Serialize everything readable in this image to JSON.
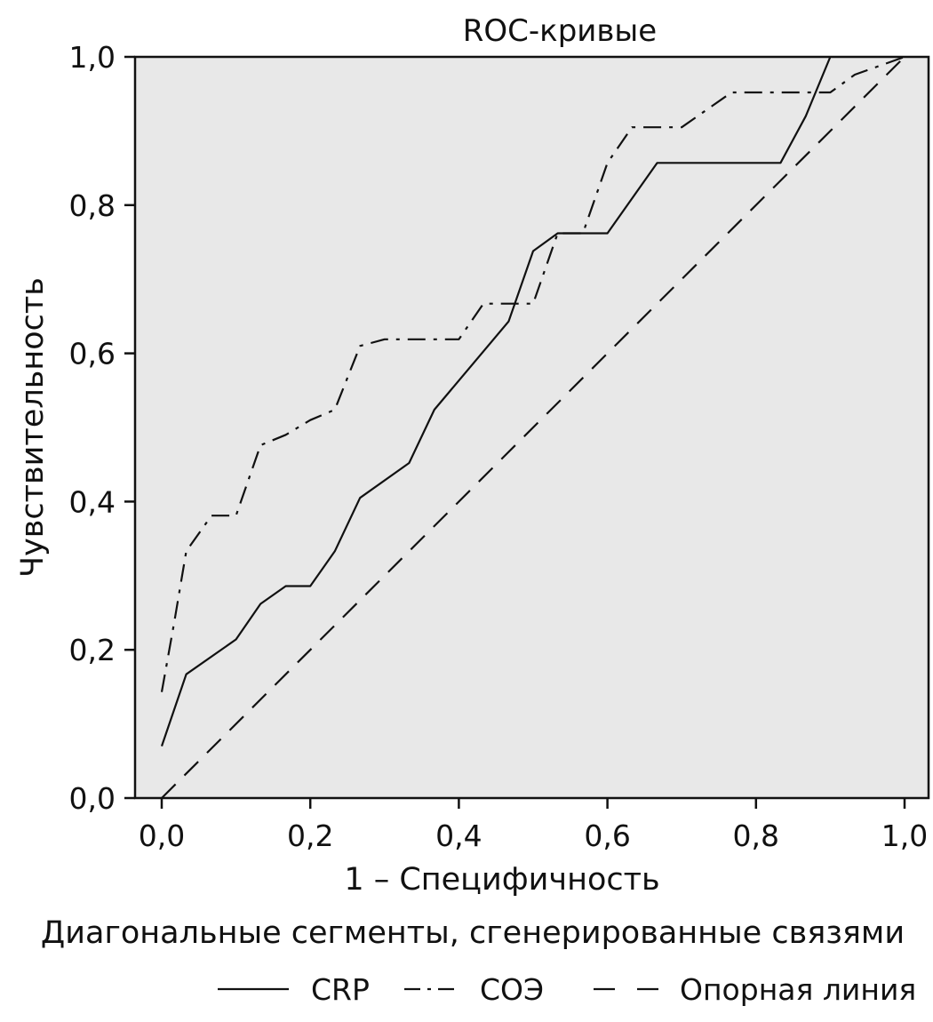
{
  "chart_data": {
    "type": "line",
    "title": "ROC-кривые",
    "xlabel": "1 – Специфичность",
    "ylabel": "Чувствительность",
    "note": "Диагональные сегменты, сгенерированные связями",
    "xlim": [
      0,
      1
    ],
    "ylim": [
      0,
      1
    ],
    "x_ticks": [
      "0,0",
      "0,2",
      "0,4",
      "0,6",
      "0,8",
      "1,0"
    ],
    "y_ticks": [
      "0,0",
      "0,2",
      "0,4",
      "0,6",
      "0,8",
      "1,0"
    ],
    "grid": false,
    "legend_position": "bottom-right",
    "plot_background": "#e8e8e8",
    "series": [
      {
        "name": "CRP",
        "style": "solid",
        "points": [
          [
            0.0,
            0.07
          ],
          [
            0.033,
            0.167
          ],
          [
            0.1,
            0.214
          ],
          [
            0.133,
            0.262
          ],
          [
            0.167,
            0.286
          ],
          [
            0.2,
            0.286
          ],
          [
            0.233,
            0.333
          ],
          [
            0.267,
            0.405
          ],
          [
            0.333,
            0.452
          ],
          [
            0.367,
            0.524
          ],
          [
            0.467,
            0.643
          ],
          [
            0.5,
            0.738
          ],
          [
            0.533,
            0.762
          ],
          [
            0.567,
            0.762
          ],
          [
            0.6,
            0.762
          ],
          [
            0.667,
            0.857
          ],
          [
            0.833,
            0.857
          ],
          [
            0.867,
            0.92
          ],
          [
            0.9,
            1.0
          ]
        ]
      },
      {
        "name": "СОЭ",
        "style": "dash-dot",
        "points": [
          [
            0.0,
            0.143
          ],
          [
            0.017,
            0.238
          ],
          [
            0.033,
            0.333
          ],
          [
            0.067,
            0.381
          ],
          [
            0.1,
            0.381
          ],
          [
            0.133,
            0.476
          ],
          [
            0.167,
            0.49
          ],
          [
            0.2,
            0.51
          ],
          [
            0.233,
            0.524
          ],
          [
            0.267,
            0.61
          ],
          [
            0.3,
            0.619
          ],
          [
            0.4,
            0.619
          ],
          [
            0.433,
            0.667
          ],
          [
            0.5,
            0.667
          ],
          [
            0.533,
            0.762
          ],
          [
            0.567,
            0.762
          ],
          [
            0.6,
            0.857
          ],
          [
            0.633,
            0.905
          ],
          [
            0.7,
            0.905
          ],
          [
            0.767,
            0.952
          ],
          [
            0.867,
            0.952
          ],
          [
            0.9,
            0.952
          ],
          [
            0.933,
            0.976
          ],
          [
            1.0,
            1.0
          ]
        ]
      },
      {
        "name": "Опорная линия",
        "style": "dashed",
        "points": [
          [
            0,
            0
          ],
          [
            1,
            1
          ]
        ]
      }
    ]
  }
}
